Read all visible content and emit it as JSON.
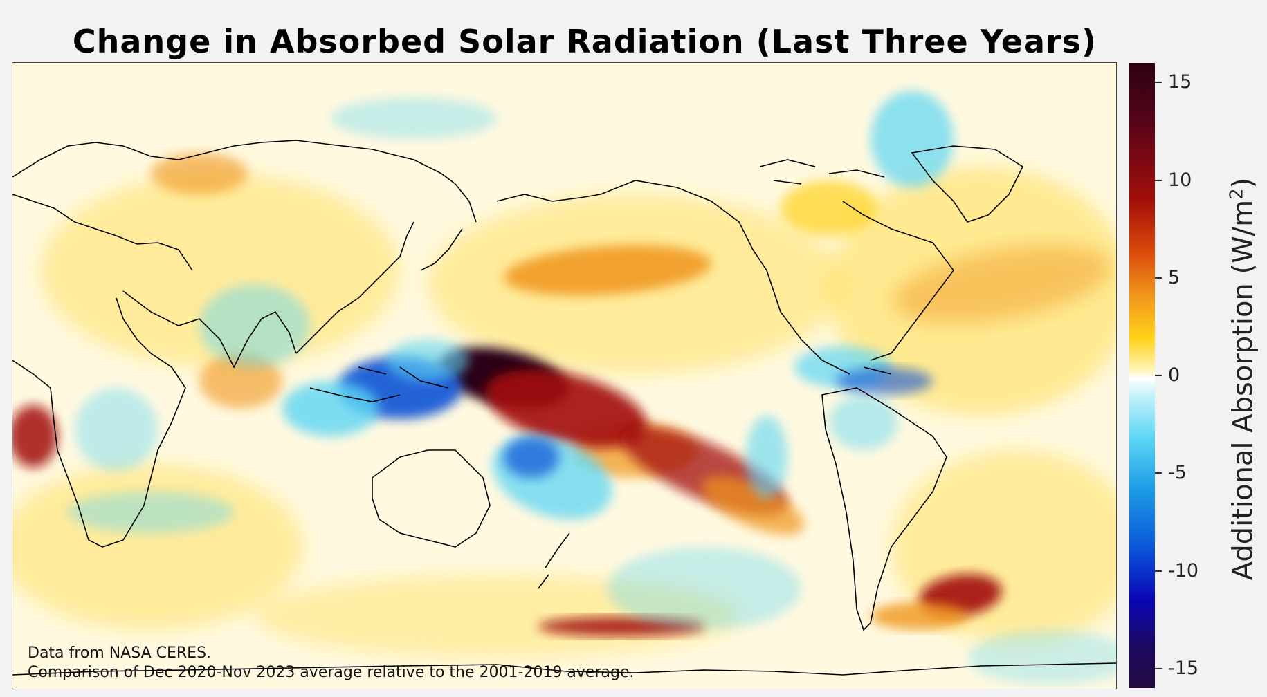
{
  "chart_data": {
    "type": "heatmap",
    "title": "Change in Absorbed Solar Radiation (Last Three Years)",
    "xlabel": "",
    "ylabel": "",
    "projection": "global map, Pacific-centered",
    "colorbar": {
      "label_main": "Additional Absorption (W/m",
      "label_sup": "2",
      "label_end": ")",
      "range": [
        -16,
        16
      ],
      "ticks": [
        15,
        10,
        5,
        0,
        -5,
        -10,
        -15
      ],
      "colors": {
        "max": "#2c0214",
        "high": "#a20f0a",
        "mid_high": "#f0951b",
        "low_positive": "#ffd21a",
        "zero": "#ffffff",
        "low_negative": "#5dd6f5",
        "mid_low": "#0a52d6",
        "min": "#250a3e"
      }
    },
    "notes": [
      "Data from NASA CERES.",
      "Comparison of Dec 2020-Nov 2023 average relative to the 2001-2019 average."
    ]
  }
}
